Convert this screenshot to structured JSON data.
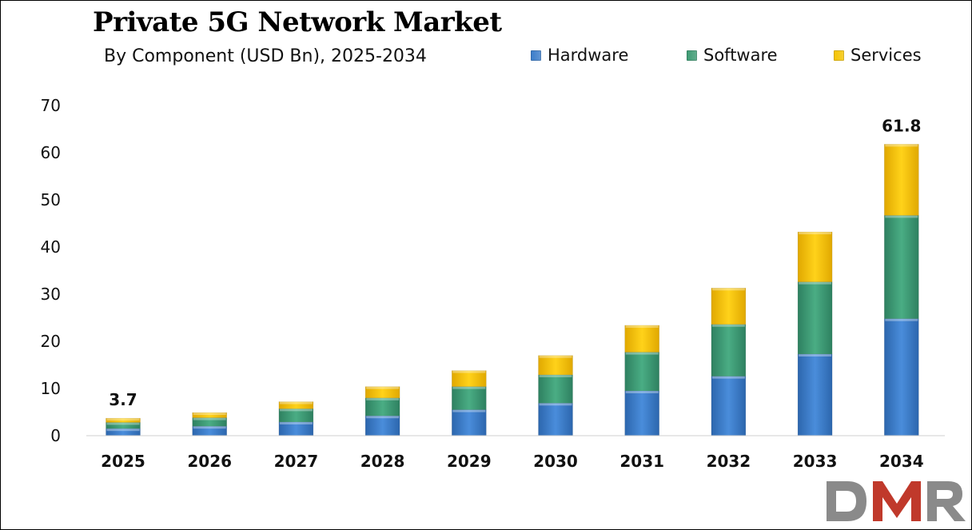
{
  "chart_data": {
    "type": "bar",
    "stacked": true,
    "title": "Private 5G Network Market",
    "subtitle": "By Component (USD Bn), 2025-2034",
    "categories": [
      "2025",
      "2026",
      "2027",
      "2028",
      "2029",
      "2030",
      "2031",
      "2032",
      "2033",
      "2034"
    ],
    "series": [
      {
        "name": "Hardware",
        "color": "#3a7cc9",
        "values": [
          1.5,
          2.0,
          2.9,
          4.2,
          5.5,
          6.9,
          9.5,
          12.6,
          17.3,
          24.8
        ]
      },
      {
        "name": "Software",
        "color": "#3c9a72",
        "values": [
          1.3,
          1.8,
          2.8,
          3.8,
          4.9,
          6.0,
          8.2,
          11.0,
          15.3,
          21.9
        ]
      },
      {
        "name": "Services",
        "color": "#f5c400",
        "values": [
          0.9,
          1.1,
          1.5,
          2.4,
          3.4,
          4.1,
          5.7,
          7.7,
          10.6,
          15.1
        ]
      }
    ],
    "totals_labels": [
      {
        "category": "2025",
        "text": "3.7"
      },
      {
        "category": "2034",
        "text": "61.8"
      }
    ],
    "ylim": [
      0,
      70
    ],
    "yticks": [
      0,
      10,
      20,
      30,
      40,
      50,
      60,
      70
    ],
    "xlabel": "",
    "ylabel": "",
    "grid": false,
    "legend_position": "top-right"
  },
  "logo": {
    "text": "DMR",
    "colors": [
      "#8a8a8a",
      "#c0392b"
    ]
  }
}
